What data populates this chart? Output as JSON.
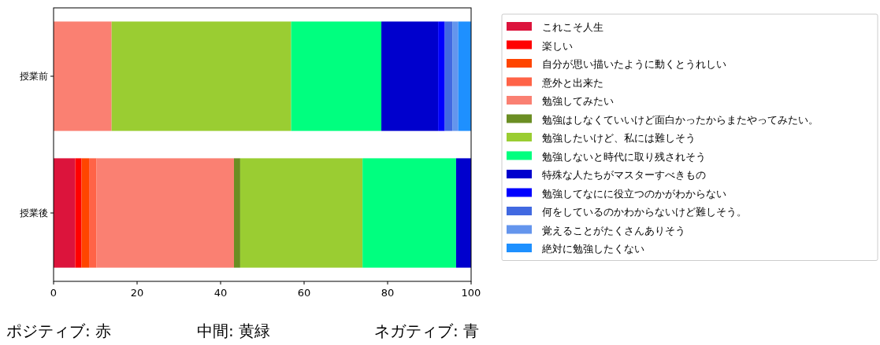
{
  "chart_data": {
    "type": "bar",
    "orientation": "horizontal",
    "stacked": true,
    "categories": [
      "授業前",
      "授業後"
    ],
    "series": [
      {
        "name": "これこそ人生",
        "color": "#dc143c",
        "values": [
          0,
          5.2
        ]
      },
      {
        "name": "楽しい",
        "color": "#ff0000",
        "values": [
          0,
          1.5
        ]
      },
      {
        "name": "自分が思い描いたように動くとうれしい",
        "color": "#ff4500",
        "values": [
          0,
          1.8
        ]
      },
      {
        "name": "意外と出来た",
        "color": "#ff6347",
        "values": [
          0,
          1.8
        ]
      },
      {
        "name": "勉強してみたい",
        "color": "#fa8072",
        "values": [
          13.9,
          32.9
        ]
      },
      {
        "name": "勉強はしなくていいけど面白かったからまたやってみたい。",
        "color": "#6b8e23",
        "values": [
          0,
          1.5
        ]
      },
      {
        "name": "勉強したいけど、私には難しそう",
        "color": "#9acd32",
        "values": [
          43.0,
          29.3
        ]
      },
      {
        "name": "勉強しないと時代に取り残されそう",
        "color": "#00ff7f",
        "values": [
          21.6,
          22.4
        ]
      },
      {
        "name": "特殊な人たちがマスターすべきもの",
        "color": "#0000cd",
        "values": [
          13.6,
          3.6
        ]
      },
      {
        "name": "勉強してなにに役立つのかがわからない",
        "color": "#0000ff",
        "values": [
          1.6,
          0
        ]
      },
      {
        "name": "何をしているのかわからないけど難しそう。",
        "color": "#4169e1",
        "values": [
          1.8,
          0
        ]
      },
      {
        "name": "覚えることがたくさんありそう",
        "color": "#6495ed",
        "values": [
          1.4,
          0
        ]
      },
      {
        "name": "絶対に勉強したくない",
        "color": "#1e90ff",
        "values": [
          3.1,
          0
        ]
      }
    ],
    "xlim": [
      0,
      100
    ],
    "xticks": [
      0,
      20,
      40,
      60,
      80,
      100
    ],
    "grid": false,
    "legend": "right",
    "annotations": [
      "ポジティブ: 赤",
      "中間: 黄緑",
      "ネガティブ: 青"
    ]
  }
}
